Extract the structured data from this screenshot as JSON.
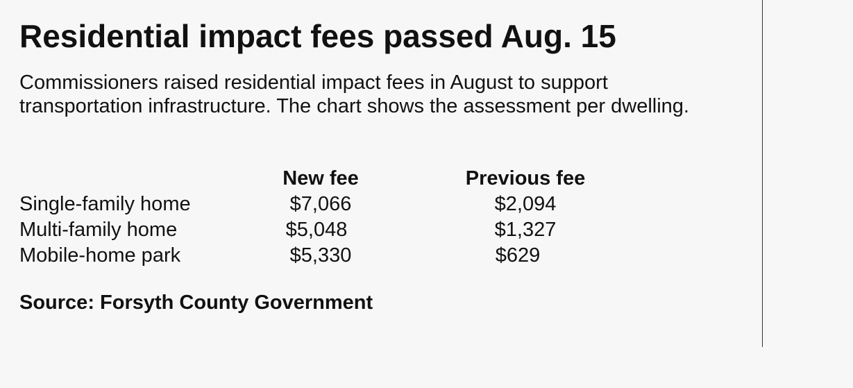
{
  "chart_data": {
    "type": "table",
    "title": "Residential impact fees passed Aug. 15",
    "subtitle": "Commissioners raised residential impact fees in August to support transportation infrastructure. The chart shows the assessment per dwelling.",
    "columns": [
      "New fee",
      "Previous fee"
    ],
    "rows": [
      {
        "label": "Single-family home",
        "new_fee": "$7,066",
        "previous_fee": "$2,094"
      },
      {
        "label": "Multi-family home",
        "new_fee": "$5,048",
        "previous_fee": "$1,327"
      },
      {
        "label": "Mobile-home park",
        "new_fee": "$5,330",
        "previous_fee": "$629"
      }
    ],
    "source": "Source: Forsyth County Government"
  }
}
